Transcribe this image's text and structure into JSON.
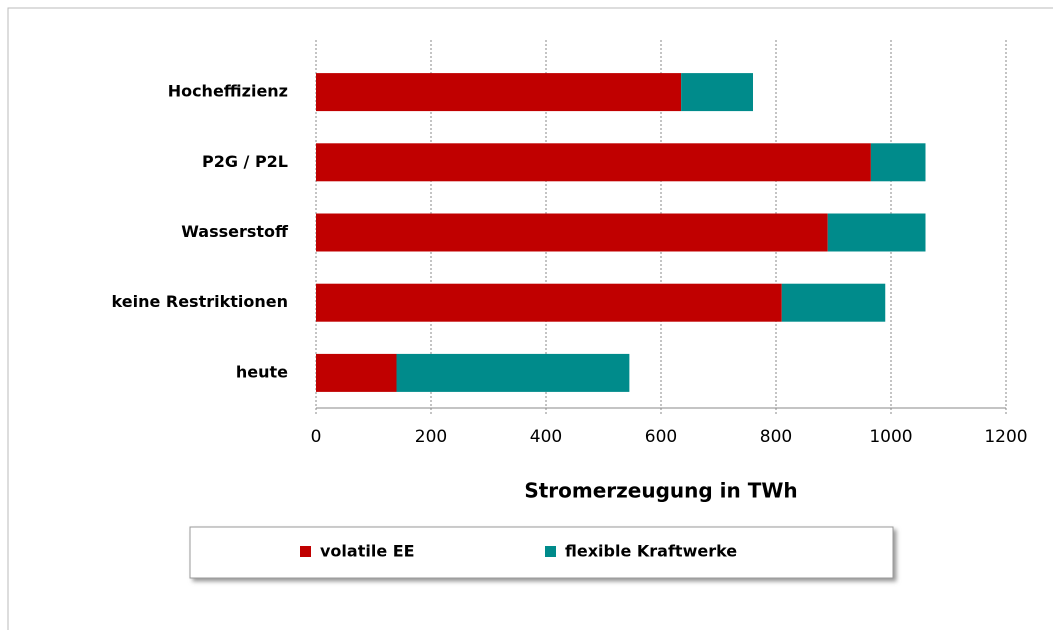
{
  "chart_data": {
    "type": "bar",
    "orientation": "horizontal",
    "stacked": true,
    "x_label": "Stromerzeugung in TWh",
    "categories": [
      "Hocheffizienz",
      "P2G / P2L",
      "Wasserstoff",
      "keine Restriktionen",
      "heute"
    ],
    "series": [
      {
        "name": "volatile EE",
        "color": "#c00000",
        "values": [
          635,
          965,
          890,
          810,
          140
        ]
      },
      {
        "name": "flexible Kraftwerke",
        "color": "#008b8b",
        "values": [
          125,
          95,
          170,
          180,
          405
        ]
      }
    ],
    "xlim": [
      0,
      1200
    ],
    "xticks": [
      0,
      200,
      400,
      600,
      800,
      1000,
      1200
    ],
    "grid": true,
    "legend": "bottom"
  }
}
